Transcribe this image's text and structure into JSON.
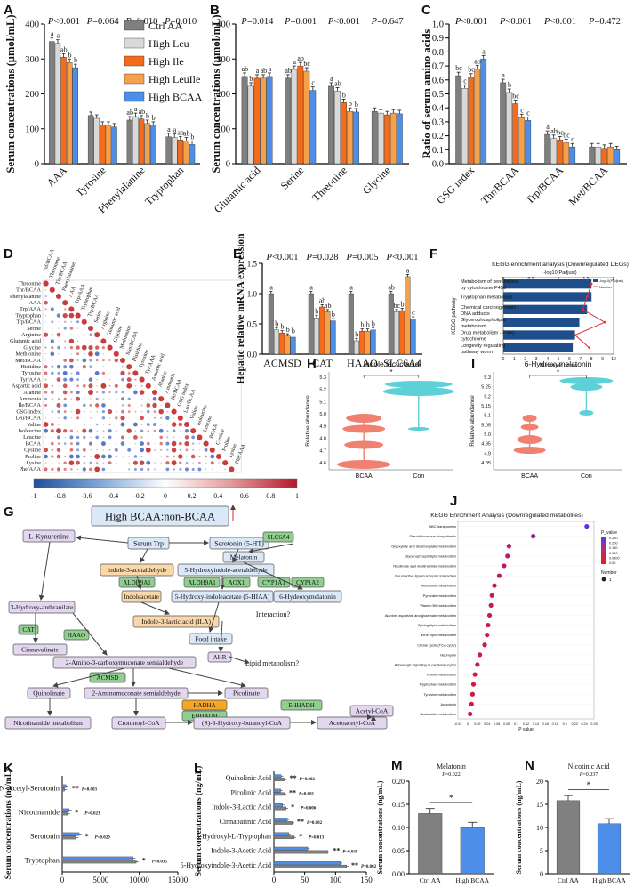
{
  "colors": {
    "ctrl": "#7f7f7f",
    "leu": "#d9d9d9",
    "ile": "#f46b1b",
    "leuile": "#f5a14c",
    "bcaa": "#4d8fe8",
    "ctrl_aa_bar": "#808080",
    "kegg_bar": "#1f4e8c",
    "kegg_line": "#e03030",
    "violin_bcaa": "#f08070",
    "violin_con": "#5ed0d8",
    "node_purple": "#e3d7ef",
    "node_blue": "#dbe8f7",
    "node_orange": "#f9d7a8",
    "node_green": "#8fd08f",
    "node_orange_dark": "#f5a623"
  },
  "chart_data": [
    {
      "id": "A",
      "panel_label": "A",
      "type": "bar",
      "ylabel": "Serum concentrations (µmol/mL)",
      "ylim": [
        0,
        400
      ],
      "yticks": [
        0,
        100,
        200,
        300,
        400
      ],
      "categories": [
        "AAA",
        "Tyrosine",
        "Phenylalanine",
        "Tryptophan"
      ],
      "pvalues": [
        "P<0.001",
        "P=0.064",
        "P=0.010",
        "P=0.010"
      ],
      "series": [
        {
          "name": "Ctrl AA",
          "values": [
            350,
            138,
            125,
            77
          ],
          "letters": [
            "a",
            "",
            "ab",
            "a"
          ]
        },
        {
          "name": "High Leu",
          "values": [
            345,
            130,
            135,
            75
          ],
          "letters": [
            "a",
            "",
            "a",
            "a"
          ]
        },
        {
          "name": "High Ile",
          "values": [
            305,
            110,
            128,
            68
          ],
          "letters": [
            "ab",
            "",
            "ab",
            "ab"
          ]
        },
        {
          "name": "High LeuIle",
          "values": [
            290,
            110,
            115,
            65
          ],
          "letters": [
            "b",
            "",
            "b",
            "ab"
          ]
        },
        {
          "name": "High BCAA",
          "values": [
            275,
            105,
            110,
            55
          ],
          "letters": [
            "b",
            "",
            "b",
            "b"
          ]
        }
      ],
      "legend": [
        "Ctrl AA",
        "High Leu",
        "High Ile",
        "High LeuIle",
        "High BCAA"
      ]
    },
    {
      "id": "B",
      "panel_label": "B",
      "type": "bar",
      "ylabel": "Serum concentrations (µmol/mL)",
      "ylim": [
        0,
        400
      ],
      "yticks": [
        0,
        100,
        200,
        300,
        400
      ],
      "categories": [
        "Glutamic acid",
        "Serine",
        "Threonine",
        "Glycine"
      ],
      "pvalues": [
        "P=0.014",
        "P=0.001",
        "P<0.001",
        "P=0.647"
      ],
      "series": [
        {
          "name": "Ctrl AA",
          "values": [
            250,
            245,
            222,
            150
          ],
          "letters": [
            "ab",
            "ab",
            "a",
            ""
          ]
        },
        {
          "name": "High Leu",
          "values": [
            222,
            270,
            208,
            145
          ],
          "letters": [
            "b",
            "a",
            "ab",
            ""
          ]
        },
        {
          "name": "High Ile",
          "values": [
            245,
            280,
            175,
            140
          ],
          "letters": [
            "a",
            "ab",
            "b",
            ""
          ]
        },
        {
          "name": "High LeuIle",
          "values": [
            245,
            265,
            150,
            145
          ],
          "letters": [
            "ab",
            "bc",
            "b",
            ""
          ]
        },
        {
          "name": "High BCAA",
          "values": [
            250,
            210,
            148,
            143
          ],
          "letters": [
            "a",
            "c",
            "b",
            ""
          ]
        }
      ]
    },
    {
      "id": "C",
      "panel_label": "C",
      "type": "bar",
      "ylabel": "Ratio of serum amino acids",
      "ylim": [
        0,
        1.0
      ],
      "yticks": [
        0.0,
        0.1,
        0.2,
        0.3,
        0.4,
        0.5,
        0.6,
        0.7,
        0.8,
        0.9,
        1.0
      ],
      "categories": [
        "GSG index",
        "Thr/BCAA",
        "Trp/BCAA",
        "Met/BCAA"
      ],
      "pvalues": [
        "P<0.001",
        "P<0.001",
        "P<0.001",
        "P=0.472"
      ],
      "series": [
        {
          "name": "Ctrl AA",
          "values": [
            0.63,
            0.58,
            0.21,
            0.12
          ],
          "letters": [
            "bc",
            "a",
            "a",
            ""
          ]
        },
        {
          "name": "High Leu",
          "values": [
            0.54,
            0.51,
            0.18,
            0.12
          ],
          "letters": [
            "c",
            "b",
            "ab",
            ""
          ]
        },
        {
          "name": "High Ile",
          "values": [
            0.62,
            0.43,
            0.17,
            0.11
          ],
          "letters": [
            "bc",
            "bc",
            "bc",
            ""
          ]
        },
        {
          "name": "High LeuIle",
          "values": [
            0.68,
            0.33,
            0.15,
            0.12
          ],
          "letters": [
            "ab",
            "c",
            "bc",
            ""
          ]
        },
        {
          "name": "High BCAA",
          "values": [
            0.75,
            0.31,
            0.12,
            0.1
          ],
          "letters": [
            "a",
            "c",
            "c",
            ""
          ]
        }
      ]
    },
    {
      "id": "D",
      "panel_label": "D",
      "type": "heatmap",
      "labels": [
        "Val/BCAA",
        "Threonine",
        "Thr/BCAA",
        "Phenylalanine",
        "AAA",
        "Trp/AAA",
        "Tryptophan",
        "Trp/BCAA",
        "Serine",
        "Arginine",
        "Glutamic acid",
        "Glycine",
        "Methionine",
        "Met/BCAA",
        "Histidine",
        "Tyrosine",
        "Tyr/AAA",
        "Aspartic acid",
        "Alanine",
        "Ammonia",
        "Ile/BCAA",
        "GSG index",
        "Leu/BCAA",
        "Valine",
        "Isoleucine",
        "Leucine",
        "BCAA",
        "Cystine",
        "Proline",
        "Lysine",
        "Phe/AAA"
      ],
      "colorbar_ticks": [
        "-1",
        "-0.8",
        "-0.6",
        "-0.4",
        "-0.2",
        "0",
        "0.2",
        "0.4",
        "0.6",
        "0.8",
        "1"
      ]
    },
    {
      "id": "E",
      "panel_label": "E",
      "type": "bar",
      "ylabel": "Hepatic relative mRNA expression",
      "ylim": [
        0,
        1.5
      ],
      "yticks": [
        0.0,
        0.5,
        1.0,
        1.5
      ],
      "categories": [
        "ACMSD",
        "CAT",
        "HAAO",
        "SLC6A4"
      ],
      "pvalues": [
        "P<0.001",
        "P=0.028",
        "P=0.005",
        "P<0.001"
      ],
      "series": [
        {
          "name": "Ctrl AA",
          "values": [
            1.0,
            1.0,
            1.0,
            1.0
          ],
          "letters": [
            "a",
            "a",
            "a",
            "ab"
          ]
        },
        {
          "name": "High Leu",
          "values": [
            0.4,
            0.6,
            0.22,
            0.7
          ],
          "letters": [
            "b",
            "b",
            "b",
            "bc"
          ]
        },
        {
          "name": "High Ile",
          "values": [
            0.35,
            0.78,
            0.38,
            0.72
          ],
          "letters": [
            "b",
            "ab",
            "b",
            "b"
          ]
        },
        {
          "name": "High LeuIle",
          "values": [
            0.3,
            0.7,
            0.38,
            1.28
          ],
          "letters": [
            "b",
            "ab",
            "b",
            "a"
          ]
        },
        {
          "name": "High BCAA",
          "values": [
            0.28,
            0.55,
            0.4,
            0.58
          ],
          "letters": [
            "b",
            "b",
            "b",
            "c"
          ]
        }
      ]
    },
    {
      "id": "F",
      "panel_label": "F",
      "type": "bar",
      "orientation": "horizontal",
      "title": "KEGG enrichment analysis (Downregulated DEGs)",
      "top_axis_label": "-log10(Padjust)",
      "xlabel": "Number of genes",
      "ylabel": "KEGG pathway",
      "xlim": [
        0,
        10
      ],
      "xticks": [
        "0",
        "1",
        "2",
        "3",
        "4",
        "5",
        "6",
        "7",
        "8",
        "9",
        "10"
      ],
      "top_ticks": [
        "0",
        "0.5",
        "1",
        "1.5",
        "2"
      ],
      "categories": [
        "Metabolism of xenobiotics by cytochrome P450",
        "Tryptophan metabolism",
        "Chemical carcinogenesis - DNA adducts",
        "Glycerophospholipid metabolism",
        "Drug metabolism - cytochrome P450",
        "Longevity regulating pathway - worm"
      ],
      "highlight": [
        false,
        true,
        false,
        true,
        false,
        false
      ],
      "values": [
        8,
        8,
        7.6,
        6.9,
        6.5,
        6.3
      ],
      "line_values": [
        8.0,
        7.6,
        7.2,
        9.2,
        6.5,
        7.8
      ],
      "legend": [
        "-log10(Padjust)",
        "Number"
      ]
    },
    {
      "id": "H",
      "panel_label": "H",
      "type": "violin",
      "title": "Indole lactic acid",
      "ylabel": "Relative abundance",
      "categories": [
        "BCAA",
        "Con"
      ],
      "ylim": [
        4.55,
        5.35
      ],
      "yticks": [
        "4.6",
        "4.7",
        "4.8",
        "4.9",
        "5.0",
        "5.1",
        "5.2",
        "5.3"
      ],
      "significance": "*"
    },
    {
      "id": "I",
      "panel_label": "I",
      "type": "violin",
      "title": "6-Hydroxymelatonin",
      "ylabel": "Relative abundance",
      "categories": [
        "BCAA",
        "Con"
      ],
      "ylim": [
        4.83,
        5.32
      ],
      "yticks": [
        "4.85",
        "4.9",
        "4.95",
        "5.0",
        "5.05",
        "5.1",
        "5.15",
        "5.2",
        "5.25",
        "5.3"
      ],
      "significance": "*"
    },
    {
      "id": "J",
      "panel_label": "J",
      "type": "scatter",
      "title": "KEGG Enrichment Analysis (Downregulated metabolites)",
      "xlabel": "P value",
      "xlim": [
        -0.02,
        0.26
      ],
      "xticks": [
        "-0.02",
        "0",
        "0.02",
        "0.04",
        "0.06",
        "0.08",
        "0.1",
        "0.12",
        "0.14",
        "0.16",
        "0.18",
        "0.2",
        "0.22",
        "0.24",
        "0.26"
      ],
      "categories": [
        "ABC transporters",
        "Steroid hormone biosynthesis",
        "Glyoxylate and dicarboxylate metabolism",
        "Glycerophospholipid metabolism",
        "Nicotinate and nicotinamide metabolism",
        "Neuroactive ligand-receptor interaction",
        "Histamine metabolism",
        "Pyruvate metabolism",
        "Vitamin B6 metabolism",
        "Alanine, aspartate and glutamate metabolism",
        "Sphingolipid metabolism",
        "Ether lipid metabolism",
        "Citrate cycle (TCA cycle)",
        "Neomycin",
        "Adrenergic signaling in cardiomyocytes",
        "Purine metabolism",
        "Tryptophan metabolism",
        "Tyrosine metabolism",
        "Apoptosis",
        "Nucleotide metabolism"
      ],
      "highlight": [
        false,
        false,
        false,
        false,
        true,
        false,
        false,
        false,
        false,
        true,
        false,
        false,
        true,
        false,
        false,
        false,
        true,
        true,
        false,
        false
      ],
      "x": [
        0.245,
        0.135,
        0.085,
        0.082,
        0.075,
        0.065,
        0.055,
        0.05,
        0.048,
        0.045,
        0.042,
        0.04,
        0.035,
        0.025,
        0.02,
        0.015,
        0.012,
        0.01,
        0.008,
        0.005
      ],
      "legend_title": "P_value",
      "legend_values": [
        "0.250",
        "0.200",
        "0.150",
        "0.100",
        "0.0500",
        "0.00"
      ],
      "size_legend_title": "Number",
      "size_legend_values": [
        "1"
      ]
    },
    {
      "id": "K",
      "panel_label": "K",
      "type": "bar",
      "orientation": "horizontal",
      "ylabel": "Serum concentrations (ng/mL)",
      "xlim": [
        0,
        15000
      ],
      "xticks": [
        "0",
        "5000",
        "10000",
        "15000"
      ],
      "categories": [
        "N-Acetyl-Serotonin",
        "Nicotinamide",
        "Serotonin",
        "Tryptophan"
      ],
      "series": [
        {
          "name": "High BCAA",
          "values": [
            500,
            900,
            2200,
            9200
          ]
        },
        {
          "name": "Ctrl AA",
          "values": [
            300,
            700,
            1800,
            9600
          ]
        }
      ],
      "stars": [
        "**",
        "*",
        "*",
        "*"
      ],
      "pvalues": [
        "P=0.003",
        "P=0.023",
        "P=0.020",
        "P=0.035"
      ]
    },
    {
      "id": "L",
      "panel_label": "L",
      "type": "bar",
      "orientation": "horizontal",
      "ylabel": "Serum concentrations (ng/mL)",
      "xlim": [
        0,
        150
      ],
      "xticks": [
        "0",
        "50",
        "100",
        "150"
      ],
      "categories": [
        "Quinolinic Acid",
        "Picolinic Acid",
        "Indole-3-Lactic Acid",
        "Cinnabarinic Acid",
        "5-Hydroxyl-L-Tryptophan",
        "Indole-3-Acetic Acid",
        "5-Hydroxyindole-3-Acetic Acid"
      ],
      "series": [
        {
          "name": "High BCAA",
          "values": [
            12,
            11,
            14,
            22,
            24,
            55,
            108
          ]
        },
        {
          "name": "Ctrl AA",
          "values": [
            18,
            17,
            20,
            30,
            33,
            88,
            118
          ]
        }
      ],
      "stars": [
        "**",
        "**",
        "*",
        "**",
        "*",
        "**",
        "**"
      ],
      "pvalues": [
        "P=0.002",
        "P=0.001",
        "P=0.006",
        "P=0.002",
        "P=0.013",
        "P=0.038",
        "P=0.002"
      ]
    },
    {
      "id": "M",
      "panel_label": "M",
      "type": "bar",
      "title": "Melatonin",
      "pvalue": "P=0.022",
      "significance": "*",
      "ylabel": "Serum concentrations (ng/mL)",
      "ylim": [
        0,
        0.2
      ],
      "yticks": [
        "0.00",
        "0.05",
        "0.10",
        "0.15",
        "0.20"
      ],
      "categories": [
        "Ctrl AA",
        "High BCAA"
      ],
      "values": [
        0.13,
        0.1
      ]
    },
    {
      "id": "N",
      "panel_label": "N",
      "type": "bar",
      "title": "Nicotinic Acid",
      "pvalue": "P=0.037",
      "significance": "*",
      "ylabel": "Serum concentrations (ng/mL)",
      "ylim": [
        0,
        20
      ],
      "yticks": [
        "0",
        "5",
        "10",
        "15",
        "20"
      ],
      "categories": [
        "Ctrl AA",
        "High BCAA"
      ],
      "values": [
        15.8,
        10.8
      ]
    }
  ],
  "pathway": {
    "panel_label": "G",
    "nodes": [
      {
        "id": "top",
        "text": "High BCAA:non-BCAA"
      },
      {
        "id": "kyn",
        "text": "L-Kynurenine"
      },
      {
        "id": "trp",
        "text": "Serum Trp"
      },
      {
        "id": "ser5ht",
        "text": "Serotonin (5-HT)"
      },
      {
        "id": "slc",
        "text": "SLC6A4"
      },
      {
        "id": "ind3ald",
        "text": "Indole-3-acetaldehyde"
      },
      {
        "id": "hiald",
        "text": "5-Hydroxyindole-acetaldehyde"
      },
      {
        "id": "mel",
        "text": "Melatonin"
      },
      {
        "id": "aldh",
        "text": "ALDH9A1"
      },
      {
        "id": "aldh2",
        "text": "ALDH9A1"
      },
      {
        "id": "aox",
        "text": "AOX1"
      },
      {
        "id": "cyp1",
        "text": "CYP1A1"
      },
      {
        "id": "cyp2",
        "text": "CYP1A2"
      },
      {
        "id": "iaa",
        "text": "Indoleacetate"
      },
      {
        "id": "hiaa",
        "text": "5-Hydroxy-indoleacetate (5-HIAA)"
      },
      {
        "id": "hmel",
        "text": "6-Hydeoxymelatonin"
      },
      {
        "id": "haa",
        "text": "3-Hydroxy-anthranilate"
      },
      {
        "id": "ila",
        "text": "Indole-3-lactic acid (ILA)"
      },
      {
        "id": "food",
        "text": "Food intake"
      },
      {
        "id": "inter",
        "text": "Interaction?"
      },
      {
        "id": "cat",
        "text": "CAT"
      },
      {
        "id": "haao",
        "text": "HAAO"
      },
      {
        "id": "cinn",
        "text": "Cinnavalinate"
      },
      {
        "id": "acms",
        "text": "2-Amino-3-carboxymuconate semialdehyde"
      },
      {
        "id": "ahr",
        "text": "AHR"
      },
      {
        "id": "lipid",
        "text": "Lipid metabolism?"
      },
      {
        "id": "acmsd",
        "text": "ACMSD"
      },
      {
        "id": "quin",
        "text": "Quinolinate"
      },
      {
        "id": "ams",
        "text": "2-Aminomuconate semialdehyde"
      },
      {
        "id": "pic",
        "text": "Picolinate"
      },
      {
        "id": "acetyl",
        "text": "Acetyl-CoA"
      },
      {
        "id": "hadha",
        "text": "HADHA"
      },
      {
        "id": "ehhadh",
        "text": "EHHADH"
      },
      {
        "id": "ehhadh2",
        "text": "EHHADH"
      },
      {
        "id": "nic",
        "text": "Nicotinamide metabolism"
      },
      {
        "id": "crot",
        "text": "Crotonoyl-CoA"
      },
      {
        "id": "hbut",
        "text": "(S)-3-Hydroxy-butanoyl-CoA"
      },
      {
        "id": "acac",
        "text": "Acetoacetyl-CoA"
      }
    ]
  }
}
